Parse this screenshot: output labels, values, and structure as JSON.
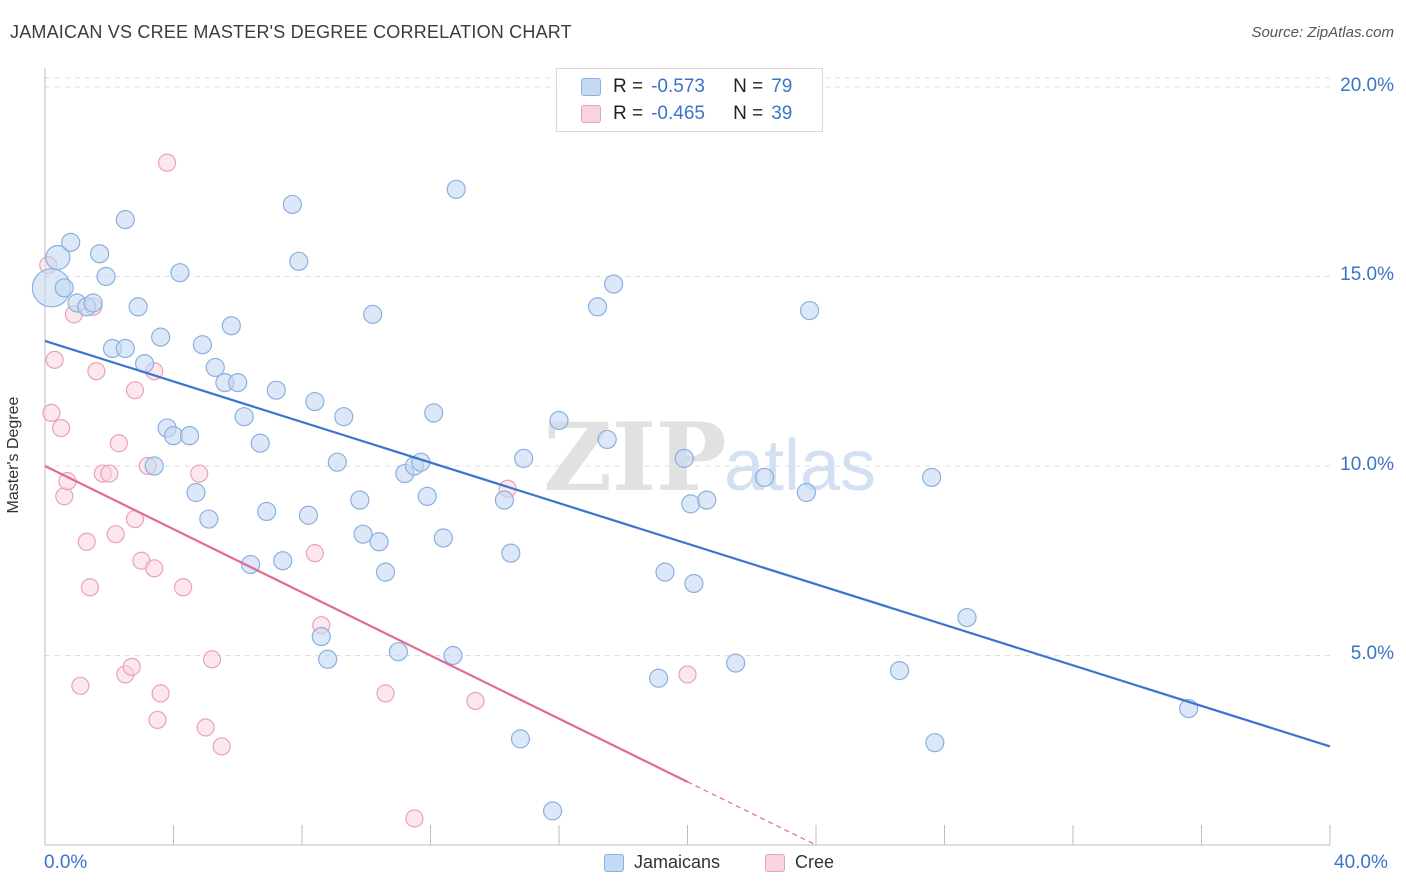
{
  "title": "JAMAICAN VS CREE MASTER'S DEGREE CORRELATION CHART",
  "source": "Source: ZipAtlas.com",
  "watermark": {
    "zip": "ZIP",
    "atlas": "atlas"
  },
  "legend_top": [
    {
      "r_label": "R =",
      "r_value": "-0.573",
      "n_label": "N =",
      "n_value": "79"
    },
    {
      "r_label": "R =",
      "r_value": "-0.465",
      "n_label": "N =",
      "n_value": "39"
    }
  ],
  "legend_bottom": [
    "Jamaicans",
    "Cree"
  ],
  "colors": {
    "blue_fill": "#c4d9f3",
    "blue_stroke": "#8ab0e0",
    "blue_line": "#3a74d0",
    "pink_fill": "#f8d4df",
    "pink_stroke": "#eba2b7",
    "pink_line": "#e06b96",
    "tick_text": "#3a74c9",
    "grid": "#dedede"
  },
  "chart_data": {
    "type": "scatter",
    "title": "JAMAICAN VS CREE MASTER'S DEGREE CORRELATION CHART",
    "xlabel": "",
    "ylabel": "Master's Degree",
    "xlim": [
      0,
      40
    ],
    "ylim": [
      0,
      20.5
    ],
    "x_tick_labels": [
      "0.0%",
      "40.0%"
    ],
    "y_tick_labels": [
      "5.0%",
      "10.0%",
      "15.0%",
      "20.0%"
    ],
    "y_ticks": [
      5,
      10,
      15,
      20
    ],
    "grid": true,
    "legend_position": "top-center",
    "series": [
      {
        "name": "Jamaicans",
        "r": -0.573,
        "n": 79,
        "trend": {
          "x": [
            0,
            40
          ],
          "y": [
            13.3,
            2.6
          ]
        },
        "points": [
          [
            0.2,
            14.7
          ],
          [
            0.4,
            15.5
          ],
          [
            0.6,
            14.7
          ],
          [
            0.8,
            15.9
          ],
          [
            1.0,
            14.3
          ],
          [
            1.3,
            14.2
          ],
          [
            1.5,
            14.3
          ],
          [
            1.7,
            15.6
          ],
          [
            1.9,
            15.0
          ],
          [
            2.1,
            13.1
          ],
          [
            2.5,
            16.5
          ],
          [
            2.5,
            13.1
          ],
          [
            2.9,
            14.2
          ],
          [
            3.1,
            12.7
          ],
          [
            3.4,
            10.0
          ],
          [
            3.6,
            13.4
          ],
          [
            3.8,
            11.0
          ],
          [
            4.0,
            10.8
          ],
          [
            4.2,
            15.1
          ],
          [
            4.5,
            10.8
          ],
          [
            4.7,
            9.3
          ],
          [
            4.9,
            13.2
          ],
          [
            5.1,
            8.6
          ],
          [
            5.3,
            12.6
          ],
          [
            5.6,
            12.2
          ],
          [
            5.8,
            13.7
          ],
          [
            6.0,
            12.2
          ],
          [
            6.2,
            11.3
          ],
          [
            6.4,
            7.4
          ],
          [
            6.7,
            10.6
          ],
          [
            6.9,
            8.8
          ],
          [
            7.2,
            12.0
          ],
          [
            7.4,
            7.5
          ],
          [
            7.7,
            16.9
          ],
          [
            7.9,
            15.4
          ],
          [
            8.2,
            8.7
          ],
          [
            8.4,
            11.7
          ],
          [
            8.6,
            5.5
          ],
          [
            8.8,
            4.9
          ],
          [
            9.1,
            10.1
          ],
          [
            9.3,
            11.3
          ],
          [
            9.8,
            9.1
          ],
          [
            9.9,
            8.2
          ],
          [
            10.2,
            14.0
          ],
          [
            10.4,
            8.0
          ],
          [
            10.6,
            7.2
          ],
          [
            11.0,
            5.1
          ],
          [
            11.2,
            9.8
          ],
          [
            11.5,
            10.0
          ],
          [
            11.7,
            10.1
          ],
          [
            11.9,
            9.2
          ],
          [
            12.1,
            11.4
          ],
          [
            12.4,
            8.1
          ],
          [
            12.7,
            5.0
          ],
          [
            12.8,
            17.3
          ],
          [
            14.3,
            9.1
          ],
          [
            14.5,
            7.7
          ],
          [
            14.8,
            2.8
          ],
          [
            14.9,
            10.2
          ],
          [
            15.8,
            0.9
          ],
          [
            16.0,
            11.2
          ],
          [
            17.2,
            14.2
          ],
          [
            17.5,
            10.7
          ],
          [
            17.7,
            14.8
          ],
          [
            19.1,
            4.4
          ],
          [
            19.3,
            7.2
          ],
          [
            19.9,
            10.2
          ],
          [
            20.1,
            9.0
          ],
          [
            20.2,
            6.9
          ],
          [
            20.6,
            9.1
          ],
          [
            21.5,
            4.8
          ],
          [
            22.4,
            9.7
          ],
          [
            23.7,
            9.3
          ],
          [
            23.8,
            14.1
          ],
          [
            26.6,
            4.6
          ],
          [
            27.6,
            9.7
          ],
          [
            27.7,
            2.7
          ],
          [
            28.7,
            6.0
          ],
          [
            35.6,
            3.6
          ]
        ],
        "sizes": {
          "0.2,14.7": "large",
          "0.4,15.5": "medium"
        }
      },
      {
        "name": "Cree",
        "r": -0.465,
        "n": 39,
        "trend": {
          "x": [
            0,
            24
          ],
          "y": [
            10.0,
            0.0
          ],
          "solid_until_x": 20.0
        },
        "points": [
          [
            0.1,
            15.3
          ],
          [
            0.2,
            11.4
          ],
          [
            0.3,
            12.8
          ],
          [
            0.5,
            11.0
          ],
          [
            0.6,
            9.2
          ],
          [
            0.7,
            9.6
          ],
          [
            0.9,
            14.0
          ],
          [
            1.1,
            4.2
          ],
          [
            1.3,
            8.0
          ],
          [
            1.4,
            6.8
          ],
          [
            1.5,
            14.2
          ],
          [
            1.6,
            12.5
          ],
          [
            1.8,
            9.8
          ],
          [
            2.0,
            9.8
          ],
          [
            2.2,
            8.2
          ],
          [
            2.3,
            10.6
          ],
          [
            2.5,
            4.5
          ],
          [
            2.7,
            4.7
          ],
          [
            2.8,
            12.0
          ],
          [
            2.8,
            8.6
          ],
          [
            3.0,
            7.5
          ],
          [
            3.2,
            10.0
          ],
          [
            3.4,
            7.3
          ],
          [
            3.4,
            12.5
          ],
          [
            3.5,
            3.3
          ],
          [
            3.6,
            4.0
          ],
          [
            3.8,
            18.0
          ],
          [
            4.3,
            6.8
          ],
          [
            4.8,
            9.8
          ],
          [
            5.0,
            3.1
          ],
          [
            5.2,
            4.9
          ],
          [
            5.5,
            2.6
          ],
          [
            8.4,
            7.7
          ],
          [
            8.6,
            5.8
          ],
          [
            10.6,
            4.0
          ],
          [
            11.5,
            0.7
          ],
          [
            13.4,
            3.8
          ],
          [
            14.4,
            9.4
          ],
          [
            20.0,
            4.5
          ]
        ]
      }
    ]
  },
  "plot_area_note": ""
}
